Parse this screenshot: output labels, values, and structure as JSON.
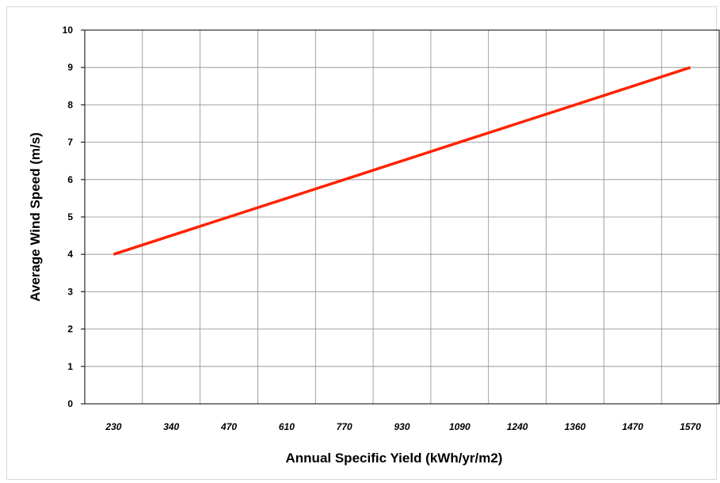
{
  "chart_data": {
    "type": "line",
    "title": "",
    "xlabel": "Annual Specific Yield (kWh/yr/m2)",
    "ylabel": "Average Wind Speed (m/s)",
    "x_tick_labels": [
      "230",
      "340",
      "470",
      "610",
      "770",
      "930",
      "1090",
      "1240",
      "1360",
      "1470",
      "1570"
    ],
    "y_ticks": [
      0,
      1,
      2,
      3,
      4,
      5,
      6,
      7,
      8,
      9,
      10
    ],
    "ylim": [
      0,
      10
    ],
    "grid": true,
    "legend": "none",
    "series": [
      {
        "color": "#ff2200",
        "x": [
          "230",
          "340",
          "470",
          "610",
          "770",
          "930",
          "1090",
          "1240",
          "1360",
          "1470",
          "1570"
        ],
        "values": [
          4.0,
          4.5,
          5.0,
          5.5,
          6.0,
          6.5,
          7.0,
          7.5,
          8.0,
          8.5,
          9.0
        ]
      }
    ]
  }
}
